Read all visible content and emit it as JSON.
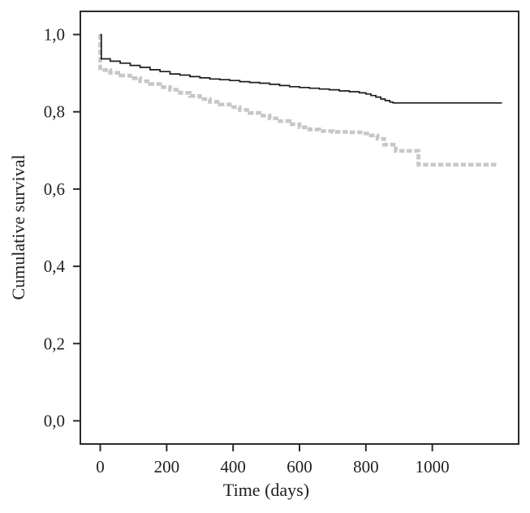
{
  "chart_data": {
    "type": "line",
    "subtype": "kaplan-meier-step",
    "title": "",
    "xlabel": "Time (days)",
    "ylabel": "Cumulative survival",
    "xlim": [
      -60,
      1260
    ],
    "ylim": [
      -0.06,
      1.06
    ],
    "grid": false,
    "legend": "none",
    "background": "#ffffff",
    "axis_color": "#2b2b2b",
    "text_color": "#1f1f1f",
    "xticks": {
      "values": [
        0,
        200,
        400,
        600,
        800,
        1000
      ],
      "labels": [
        "0",
        "200",
        "400",
        "600",
        "800",
        "1000"
      ]
    },
    "yticks": {
      "values": [
        0.0,
        0.2,
        0.4,
        0.6,
        0.8,
        1.0
      ],
      "labels": [
        "0,0",
        "0,2",
        "0,4",
        "0,6",
        "0,8",
        "1,0"
      ]
    },
    "series": [
      {
        "name": "survival-curve-gray-dashed",
        "color": "#c7c7c7",
        "line_width": 4.6,
        "dash": [
          6.5,
          2.8
        ],
        "step": true,
        "points": [
          [
            0,
            1.0
          ],
          [
            0,
            0.908
          ],
          [
            30,
            0.901
          ],
          [
            60,
            0.894
          ],
          [
            90,
            0.887
          ],
          [
            120,
            0.879
          ],
          [
            150,
            0.872
          ],
          [
            180,
            0.864
          ],
          [
            210,
            0.857
          ],
          [
            240,
            0.849
          ],
          [
            270,
            0.841
          ],
          [
            300,
            0.833
          ],
          [
            330,
            0.826
          ],
          [
            360,
            0.819
          ],
          [
            390,
            0.812
          ],
          [
            420,
            0.805
          ],
          [
            450,
            0.797
          ],
          [
            480,
            0.79
          ],
          [
            510,
            0.783
          ],
          [
            540,
            0.776
          ],
          [
            570,
            0.768
          ],
          [
            600,
            0.76
          ],
          [
            630,
            0.754
          ],
          [
            660,
            0.75
          ],
          [
            700,
            0.748
          ],
          [
            750,
            0.747
          ],
          [
            790,
            0.744
          ],
          [
            815,
            0.739
          ],
          [
            835,
            0.73
          ],
          [
            855,
            0.715
          ],
          [
            890,
            0.699
          ],
          [
            958,
            0.663
          ],
          [
            1195,
            0.663
          ]
        ]
      },
      {
        "name": "survival-curve-black-solid",
        "color": "#1c1c1c",
        "line_width": 1.7,
        "dash": null,
        "step": true,
        "points": [
          [
            0,
            1.0
          ],
          [
            3,
            0.937
          ],
          [
            30,
            0.931
          ],
          [
            60,
            0.926
          ],
          [
            90,
            0.92
          ],
          [
            120,
            0.915
          ],
          [
            150,
            0.909
          ],
          [
            180,
            0.904
          ],
          [
            210,
            0.898
          ],
          [
            240,
            0.895
          ],
          [
            270,
            0.891
          ],
          [
            300,
            0.888
          ],
          [
            330,
            0.885
          ],
          [
            360,
            0.883
          ],
          [
            390,
            0.881
          ],
          [
            420,
            0.878
          ],
          [
            450,
            0.876
          ],
          [
            480,
            0.874
          ],
          [
            510,
            0.871
          ],
          [
            540,
            0.868
          ],
          [
            570,
            0.865
          ],
          [
            600,
            0.863
          ],
          [
            630,
            0.861
          ],
          [
            660,
            0.859
          ],
          [
            690,
            0.857
          ],
          [
            720,
            0.854
          ],
          [
            750,
            0.852
          ],
          [
            780,
            0.849
          ],
          [
            800,
            0.846
          ],
          [
            815,
            0.842
          ],
          [
            830,
            0.838
          ],
          [
            845,
            0.833
          ],
          [
            858,
            0.829
          ],
          [
            872,
            0.825
          ],
          [
            882,
            0.823
          ],
          [
            1210,
            0.823
          ]
        ]
      }
    ]
  }
}
